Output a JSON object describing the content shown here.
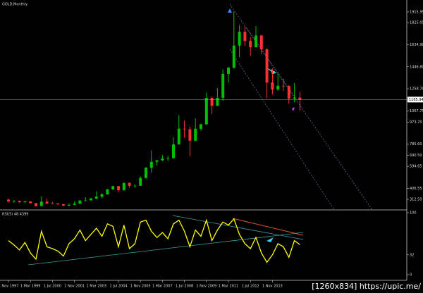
{
  "chart_data": [
    {
      "type": "candlestick",
      "title": "GOLD,Monthly",
      "x": [
        "1997-11",
        "1998-03",
        "1998-07",
        "1998-11",
        "1999-03",
        "1999-07",
        "1999-11",
        "2000-03",
        "2000-07",
        "2000-11",
        "2001-03",
        "2001-07",
        "2001-11",
        "2002-03",
        "2002-07",
        "2002-11",
        "2003-03",
        "2003-07",
        "2003-11",
        "2004-03",
        "2004-07",
        "2004-11",
        "2005-03",
        "2005-07",
        "2005-11",
        "2006-03",
        "2006-07",
        "2006-11",
        "2007-03",
        "2007-07",
        "2007-11",
        "2008-03",
        "2008-07",
        "2008-11",
        "2009-03",
        "2009-07",
        "2009-11",
        "2010-03",
        "2010-07",
        "2010-11",
        "2011-03",
        "2011-07",
        "2011-11",
        "2012-03",
        "2012-07",
        "2012-11",
        "2013-03",
        "2013-07",
        "2013-11",
        "2014-03",
        "2014-07",
        "2014-11",
        "2015-03",
        "2015-07"
      ],
      "ohlc": [
        [
          310,
          318,
          285,
          296
        ],
        [
          296,
          305,
          284,
          300
        ],
        [
          300,
          302,
          278,
          288
        ],
        [
          288,
          300,
          283,
          294
        ],
        [
          294,
          297,
          277,
          280
        ],
        [
          280,
          283,
          252,
          255
        ],
        [
          255,
          338,
          253,
          292
        ],
        [
          292,
          316,
          273,
          277
        ],
        [
          277,
          290,
          271,
          276
        ],
        [
          276,
          282,
          265,
          270
        ],
        [
          270,
          274,
          255,
          258
        ],
        [
          258,
          276,
          256,
          265
        ],
        [
          265,
          294,
          263,
          275
        ],
        [
          275,
          305,
          274,
          302
        ],
        [
          302,
          330,
          298,
          304
        ],
        [
          304,
          327,
          300,
          318
        ],
        [
          318,
          382,
          314,
          335
        ],
        [
          335,
          365,
          320,
          355
        ],
        [
          355,
          400,
          352,
          398
        ],
        [
          398,
          430,
          395,
          425
        ],
        [
          425,
          427,
          372,
          391
        ],
        [
          391,
          456,
          386,
          453
        ],
        [
          453,
          457,
          411,
          428
        ],
        [
          428,
          440,
          414,
          429
        ],
        [
          429,
          508,
          427,
          495
        ],
        [
          495,
          590,
          490,
          582
        ],
        [
          582,
          730,
          540,
          633
        ],
        [
          633,
          650,
          600,
          646
        ],
        [
          646,
          690,
          640,
          662
        ],
        [
          662,
          685,
          640,
          665
        ],
        [
          665,
          845,
          660,
          783
        ],
        [
          783,
          1033,
          780,
          917
        ],
        [
          917,
          988,
          840,
          912
        ],
        [
          912,
          935,
          681,
          815
        ],
        [
          815,
          1006,
          810,
          916
        ],
        [
          916,
          960,
          900,
          954
        ],
        [
          954,
          1226,
          950,
          1180
        ],
        [
          1180,
          1190,
          1045,
          1113
        ],
        [
          1113,
          1265,
          1110,
          1181
        ],
        [
          1181,
          1424,
          1155,
          1386
        ],
        [
          1386,
          1445,
          1310,
          1439
        ],
        [
          1439,
          1920,
          1430,
          1628
        ],
        [
          1628,
          1803,
          1530,
          1746
        ],
        [
          1746,
          1791,
          1627,
          1668
        ],
        [
          1668,
          1700,
          1540,
          1614
        ],
        [
          1614,
          1796,
          1612,
          1714
        ],
        [
          1714,
          1720,
          1555,
          1596
        ],
        [
          1596,
          1605,
          1180,
          1312
        ],
        [
          1312,
          1434,
          1208,
          1253
        ],
        [
          1253,
          1392,
          1240,
          1284
        ],
        [
          1284,
          1345,
          1240,
          1282
        ],
        [
          1282,
          1290,
          1131,
          1175
        ],
        [
          1175,
          1307,
          1142,
          1183
        ],
        [
          1183,
          1232,
          1072,
          1165.94
        ]
      ],
      "up_color": "#00c000",
      "down_color": "#ff3030",
      "ylim": [
        222,
        2018
      ],
      "yticks": [
        1915.95,
        1825.05,
        {
          "value": 1634.9,
          "label": "1634.90"
        },
        {
          "value": 1446.8,
          "label": "1446.80"
        },
        {
          "value": 1258.7,
          "label": "1258.70"
        },
        1067.75,
        {
          "value": 973.7,
          "label": "973.70"
        },
        {
          "value": 785.6,
          "label": "785.60"
        },
        {
          "value": 690.5,
          "label": "690.50"
        },
        594.65,
        406.55,
        {
          "value": 312.5,
          "label": "312.50"
        }
      ],
      "price_line": 1165.94
    },
    {
      "type": "line",
      "title": "RSI(5) 48.4399",
      "x": [
        "1997-11",
        "1998-03",
        "1998-07",
        "1998-11",
        "1999-03",
        "1999-07",
        "1999-11",
        "2000-03",
        "2000-07",
        "2000-11",
        "2001-03",
        "2001-07",
        "2001-11",
        "2002-03",
        "2002-07",
        "2002-11",
        "2003-03",
        "2003-07",
        "2003-11",
        "2004-03",
        "2004-07",
        "2004-11",
        "2005-03",
        "2005-07",
        "2005-11",
        "2006-03",
        "2006-07",
        "2006-11",
        "2007-03",
        "2007-07",
        "2007-11",
        "2008-03",
        "2008-07",
        "2008-11",
        "2009-03",
        "2009-07",
        "2009-11",
        "2010-03",
        "2010-07",
        "2010-11",
        "2011-03",
        "2011-07",
        "2011-11",
        "2012-03",
        "2012-07",
        "2012-11",
        "2013-03",
        "2013-07",
        "2013-11",
        "2014-03",
        "2014-07",
        "2014-11",
        "2015-03",
        "2015-07"
      ],
      "values": [
        55,
        48,
        40,
        52,
        35,
        25,
        70,
        45,
        42,
        38,
        30,
        50,
        58,
        72,
        55,
        65,
        75,
        62,
        82,
        78,
        45,
        80,
        42,
        50,
        85,
        88,
        70,
        60,
        68,
        58,
        82,
        88,
        70,
        45,
        72,
        62,
        88,
        55,
        72,
        85,
        80,
        90,
        65,
        50,
        42,
        60,
        35,
        20,
        32,
        50,
        45,
        28,
        55,
        48.44
      ],
      "color": "#ffff00",
      "ylim": [
        0,
        100
      ],
      "yticks": [
        100,
        32,
        0
      ],
      "xticks": [
        {
          "value": "1997-11",
          "label": "1 Nov 1997"
        },
        {
          "value": "1999-03",
          "label": "1 Mar 1999"
        },
        {
          "value": "2000-07",
          "label": "1 Jul 2000"
        },
        {
          "value": "2001-11",
          "label": "1 Nov 2001"
        },
        {
          "value": "2003-03",
          "label": "1 Mar 2003"
        },
        {
          "value": "2004-07",
          "label": "1 Jul 2004"
        },
        {
          "value": "2005-11",
          "label": "1 Nov 2005"
        },
        {
          "value": "2007-03",
          "label": "1 Mar 2007"
        },
        {
          "value": "2008-07",
          "label": "1 Jul 2008"
        },
        {
          "value": "2009-11",
          "label": "1 Nov 2009"
        },
        {
          "value": "2011-03",
          "label": "1 Mar 2011"
        },
        {
          "value": "2012-07",
          "label": "1 Jul 2012"
        },
        {
          "value": "2013-11",
          "label": "1 Nov 2013"
        }
      ]
    }
  ],
  "watermark": "[1260x834] https://upic.me/"
}
